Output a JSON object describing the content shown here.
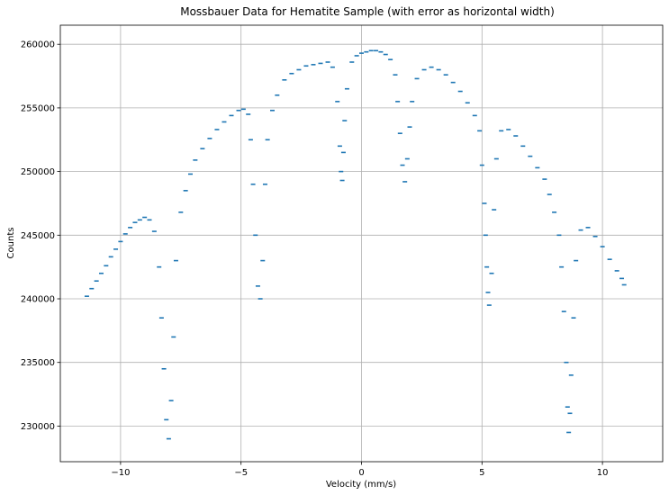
{
  "chart_data": {
    "type": "scatter",
    "title": "Mossbauer Data for Hematite Sample (with error as horizontal width)",
    "xlabel": "Velocity (mm/s)",
    "ylabel": "Counts",
    "xlim": [
      -12.5,
      12.5
    ],
    "ylim": [
      227200,
      261500
    ],
    "x_ticks": [
      -10,
      -5,
      0,
      5,
      10
    ],
    "x_tick_labels": [
      "−10",
      "−5",
      "0",
      "5",
      "10"
    ],
    "y_ticks": [
      230000,
      235000,
      240000,
      245000,
      250000,
      255000,
      260000
    ],
    "y_tick_labels": [
      "230000",
      "235000",
      "240000",
      "245000",
      "250000",
      "255000",
      "260000"
    ],
    "grid": true,
    "marker": "horizontal error bar",
    "series": [
      {
        "color": "#1f77b4",
        "points": [
          [
            -11.4,
            240200
          ],
          [
            -11.2,
            240800
          ],
          [
            -11.0,
            241400
          ],
          [
            -10.8,
            242000
          ],
          [
            -10.6,
            242600
          ],
          [
            -10.4,
            243300
          ],
          [
            -10.2,
            243900
          ],
          [
            -10.0,
            244500
          ],
          [
            -9.8,
            245100
          ],
          [
            -9.6,
            245600
          ],
          [
            -9.4,
            246000
          ],
          [
            -9.2,
            246200
          ],
          [
            -9.0,
            246400
          ],
          [
            -8.8,
            246200
          ],
          [
            -8.6,
            245300
          ],
          [
            -8.4,
            242500
          ],
          [
            -8.3,
            238500
          ],
          [
            -8.2,
            234500
          ],
          [
            -8.1,
            230500
          ],
          [
            -8.0,
            229000
          ],
          [
            -7.9,
            232000
          ],
          [
            -7.8,
            237000
          ],
          [
            -7.7,
            243000
          ],
          [
            -7.5,
            246800
          ],
          [
            -7.3,
            248500
          ],
          [
            -7.1,
            249800
          ],
          [
            -6.9,
            250900
          ],
          [
            -6.6,
            251800
          ],
          [
            -6.3,
            252600
          ],
          [
            -6.0,
            253300
          ],
          [
            -5.7,
            253900
          ],
          [
            -5.4,
            254400
          ],
          [
            -5.1,
            254800
          ],
          [
            -4.9,
            254900
          ],
          [
            -4.7,
            254500
          ],
          [
            -4.6,
            252500
          ],
          [
            -4.5,
            249000
          ],
          [
            -4.4,
            245000
          ],
          [
            -4.3,
            241000
          ],
          [
            -4.2,
            240000
          ],
          [
            -4.1,
            243000
          ],
          [
            -4.0,
            249000
          ],
          [
            -3.9,
            252500
          ],
          [
            -3.7,
            254800
          ],
          [
            -3.5,
            256000
          ],
          [
            -3.2,
            257200
          ],
          [
            -2.9,
            257700
          ],
          [
            -2.6,
            258000
          ],
          [
            -2.3,
            258300
          ],
          [
            -2.0,
            258400
          ],
          [
            -1.7,
            258500
          ],
          [
            -1.4,
            258600
          ],
          [
            -1.2,
            258200
          ],
          [
            -1.0,
            255500
          ],
          [
            -0.9,
            252000
          ],
          [
            -0.85,
            250000
          ],
          [
            -0.8,
            249300
          ],
          [
            -0.75,
            251500
          ],
          [
            -0.7,
            254000
          ],
          [
            -0.6,
            256500
          ],
          [
            -0.4,
            258600
          ],
          [
            -0.2,
            259100
          ],
          [
            0.0,
            259300
          ],
          [
            0.2,
            259400
          ],
          [
            0.4,
            259500
          ],
          [
            0.6,
            259500
          ],
          [
            0.8,
            259400
          ],
          [
            1.0,
            259200
          ],
          [
            1.2,
            258800
          ],
          [
            1.4,
            257600
          ],
          [
            1.5,
            255500
          ],
          [
            1.6,
            253000
          ],
          [
            1.7,
            250500
          ],
          [
            1.8,
            249200
          ],
          [
            1.9,
            251000
          ],
          [
            2.0,
            253500
          ],
          [
            2.1,
            255500
          ],
          [
            2.3,
            257300
          ],
          [
            2.6,
            258000
          ],
          [
            2.9,
            258200
          ],
          [
            3.2,
            258000
          ],
          [
            3.5,
            257600
          ],
          [
            3.8,
            257000
          ],
          [
            4.1,
            256300
          ],
          [
            4.4,
            255400
          ],
          [
            4.7,
            254400
          ],
          [
            4.9,
            253200
          ],
          [
            5.0,
            250500
          ],
          [
            5.1,
            247500
          ],
          [
            5.15,
            245000
          ],
          [
            5.2,
            242500
          ],
          [
            5.25,
            240500
          ],
          [
            5.3,
            239500
          ],
          [
            5.4,
            242000
          ],
          [
            5.5,
            247000
          ],
          [
            5.6,
            251000
          ],
          [
            5.8,
            253200
          ],
          [
            6.1,
            253300
          ],
          [
            6.4,
            252800
          ],
          [
            6.7,
            252000
          ],
          [
            7.0,
            251200
          ],
          [
            7.3,
            250300
          ],
          [
            7.6,
            249400
          ],
          [
            7.8,
            248200
          ],
          [
            8.0,
            246800
          ],
          [
            8.2,
            245000
          ],
          [
            8.3,
            242500
          ],
          [
            8.4,
            239000
          ],
          [
            8.5,
            235000
          ],
          [
            8.55,
            231500
          ],
          [
            8.6,
            229500
          ],
          [
            8.65,
            231000
          ],
          [
            8.7,
            234000
          ],
          [
            8.8,
            238500
          ],
          [
            8.9,
            243000
          ],
          [
            9.1,
            245400
          ],
          [
            9.4,
            245600
          ],
          [
            9.7,
            244900
          ],
          [
            10.0,
            244100
          ],
          [
            10.3,
            243100
          ],
          [
            10.6,
            242200
          ],
          [
            10.8,
            241600
          ],
          [
            10.9,
            241100
          ]
        ]
      }
    ]
  }
}
